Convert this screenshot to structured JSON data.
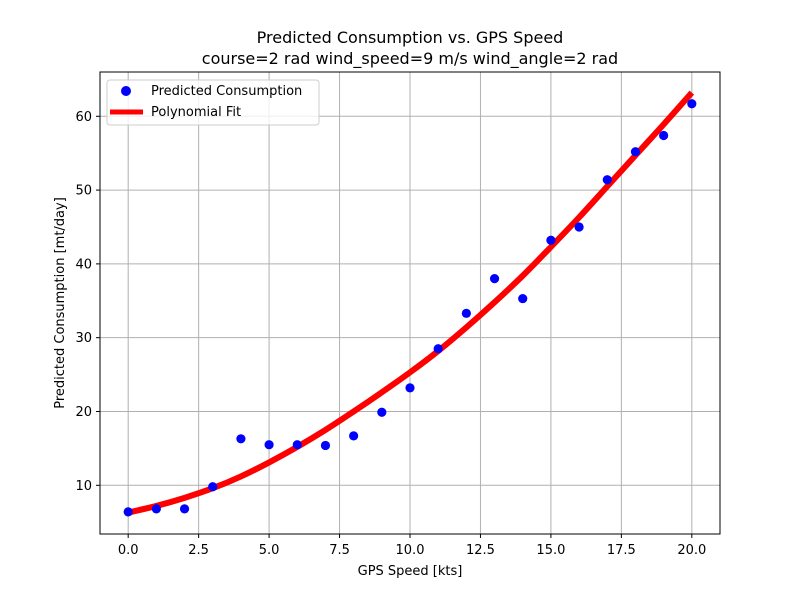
{
  "chart_data": {
    "type": "scatter",
    "title": "Predicted Consumption vs. GPS Speed",
    "subtitle": "course=2 rad  wind_speed=9 m/s  wind_angle=2 rad",
    "xlabel": "GPS Speed [kts]",
    "ylabel": "Predicted Consumption [mt/day]",
    "xlim": [
      -1.0,
      21.0
    ],
    "ylim": [
      3.4,
      66.0
    ],
    "xticks": [
      0.0,
      2.5,
      5.0,
      7.5,
      10.0,
      12.5,
      15.0,
      17.5,
      20.0
    ],
    "xtick_labels": [
      "0.0",
      "2.5",
      "5.0",
      "7.5",
      "10.0",
      "12.5",
      "15.0",
      "17.5",
      "20.0"
    ],
    "yticks": [
      10,
      20,
      30,
      40,
      50,
      60
    ],
    "ytick_labels": [
      "10",
      "20",
      "30",
      "40",
      "50",
      "60"
    ],
    "grid": true,
    "legend_position": "top-left",
    "series": [
      {
        "name": "Predicted Consumption",
        "kind": "scatter",
        "color": "#0000ff",
        "x": [
          0,
          1,
          2,
          3,
          4,
          5,
          6,
          7,
          8,
          9,
          10,
          11,
          12,
          13,
          14,
          15,
          16,
          17,
          18,
          19,
          20
        ],
        "y": [
          6.4,
          6.8,
          6.8,
          9.8,
          16.3,
          15.5,
          15.5,
          15.4,
          16.7,
          19.9,
          23.2,
          28.5,
          33.3,
          38.0,
          35.3,
          43.2,
          45.0,
          51.4,
          55.2,
          57.4,
          61.7
        ]
      },
      {
        "name": "Polynomial Fit",
        "kind": "line",
        "color": "#ff0000",
        "x": [
          0,
          1,
          2,
          3,
          4,
          5,
          6,
          7,
          8,
          9,
          10,
          11,
          12,
          13,
          14,
          15,
          16,
          17,
          18,
          19,
          20
        ],
        "y": [
          6.3,
          7.2,
          8.3,
          9.6,
          11.2,
          13.1,
          15.2,
          17.5,
          20.0,
          22.6,
          25.3,
          28.2,
          31.4,
          34.8,
          38.4,
          42.3,
          46.3,
          50.5,
          54.7,
          58.9,
          63.2
        ]
      }
    ]
  }
}
